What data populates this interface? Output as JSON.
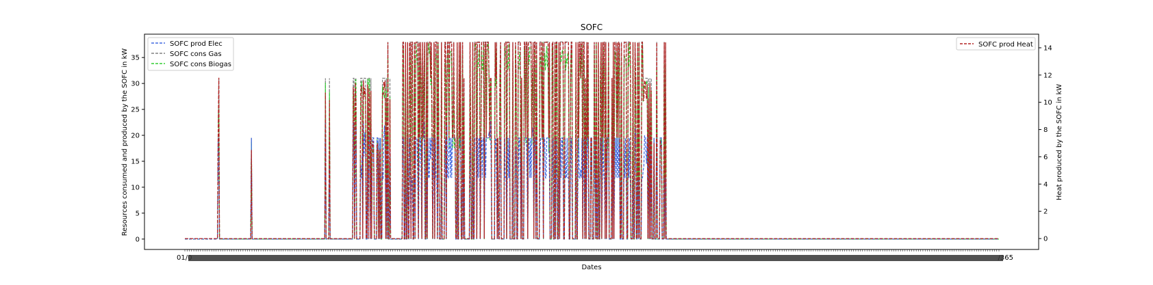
{
  "chart_data": {
    "type": "line",
    "title": "SOFC",
    "xlabel": "Dates",
    "ylabel": "Resources consumed and produced by the SOFC in kW",
    "y2label": "Heat produced by the SOFC in kW",
    "ylim": [
      -2,
      39.5
    ],
    "y2lim": [
      -0.8,
      15.0
    ],
    "yticks": [
      0,
      5,
      10,
      15,
      20,
      25,
      30,
      35
    ],
    "y2ticks": [
      0,
      2,
      4,
      6,
      8,
      10,
      12,
      14
    ],
    "grid": false,
    "x_tick_labels_overlapping": true,
    "x_tick_start_label": "01/0",
    "x_tick_end_label": "/365",
    "legend_left_position": "top-left",
    "legend_right_position": "top-right",
    "series": [
      {
        "name": "SOFC prod Elec",
        "color": "#4169e1",
        "axis": "left",
        "style": "dashed",
        "active_range": [
          11.8,
          22.8
        ]
      },
      {
        "name": "SOFC cons Gas",
        "color": "#808080",
        "axis": "left",
        "style": "dashed",
        "active_range": [
          19.5,
          38
        ]
      },
      {
        "name": "SOFC cons Biogas",
        "color": "#32cd32",
        "axis": "left",
        "style": "dashed",
        "active_range": [
          19.5,
          38
        ]
      },
      {
        "name": "SOFC prod Heat",
        "color": "#b22222",
        "axis": "right",
        "style": "dashed",
        "active_range": [
          7.4,
          14.4
        ]
      }
    ],
    "bursts": [
      {
        "start": 48,
        "end": 51,
        "heat": 14.4
      },
      {
        "start": 62,
        "end": 63,
        "heat": 14.4
      },
      {
        "start": 98,
        "end": 100,
        "heat": 7.4
      },
      {
        "start": 207,
        "end": 208,
        "heat": 11.8
      },
      {
        "start": 213,
        "end": 214,
        "heat": 11.8
      },
      {
        "start": 220,
        "end": 221,
        "heat": 7.4
      },
      {
        "start": 238,
        "end": 239,
        "heat": 11.8
      },
      {
        "start": 246,
        "end": 275,
        "heat": 11.8
      },
      {
        "start": 276,
        "end": 289,
        "heat": 7.4
      },
      {
        "start": 281,
        "end": 282,
        "heat": 14.4
      },
      {
        "start": 290,
        "end": 304,
        "heat": 11.8
      },
      {
        "start": 299,
        "end": 302,
        "heat": 14.4
      },
      {
        "start": 320,
        "end": 675,
        "heat": 14.4
      },
      {
        "start": 675,
        "end": 690,
        "heat": 11.8
      },
      {
        "start": 690,
        "end": 708,
        "heat": 7.4
      },
      {
        "start": 695,
        "end": 698,
        "heat": 14.4
      },
      {
        "start": 706,
        "end": 709,
        "heat": 14.4
      }
    ]
  }
}
